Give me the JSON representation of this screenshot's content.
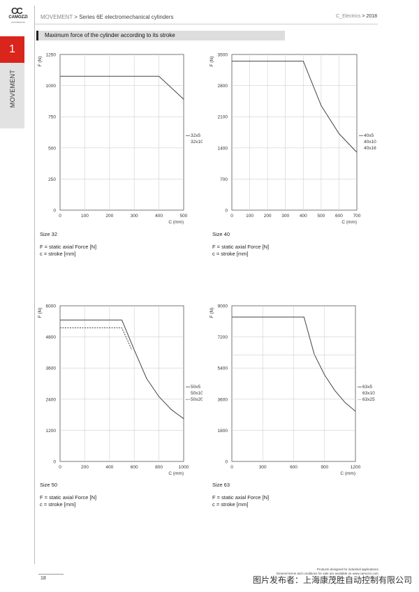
{
  "logo": {
    "mark": "CC",
    "brand": "CAMOZZI",
    "sub": "AUTOMATION"
  },
  "header": {
    "breadcrumb_section": "MOVEMENT",
    "breadcrumb_sep": " > ",
    "breadcrumb_page": "Series 6E electromechanical cylinders",
    "right_label": "C_Electrics",
    "right_sep": " > ",
    "right_year": "2018"
  },
  "sidebar": {
    "number": "1",
    "label": "MOVEMENT"
  },
  "section_title": "Maximum force of the cylinder according to its stroke",
  "captions": {
    "line1": "F = static axial Force [N]",
    "line2": "c = stroke [mm]"
  },
  "footer": {
    "line1": "Products designed for industrial applications.",
    "line2": "General terms and conditions for sale are available on www.camozzi.com.",
    "page": "18",
    "watermark": "图片发布者：上海康茂胜自动控制有限公司"
  },
  "chart_data": [
    {
      "type": "line",
      "size_label": "Size 32",
      "ylabel": "F (N)",
      "xlabel": "C (mm)",
      "xlim": [
        0,
        500
      ],
      "ylim": [
        0,
        1250
      ],
      "xticks": [
        0,
        100,
        200,
        300,
        400,
        500
      ],
      "yticks": [
        0,
        250,
        500,
        750,
        1000,
        1250
      ],
      "legend": [
        "32x5",
        "32x10"
      ],
      "series": [
        {
          "name": "32x5 / 32x10",
          "dash": "",
          "points": [
            [
              0,
              1075
            ],
            [
              400,
              1075
            ],
            [
              500,
              890
            ]
          ]
        }
      ]
    },
    {
      "type": "line",
      "size_label": "Size 40",
      "ylabel": "F (N)",
      "xlabel": "C (mm)",
      "xlim": [
        0,
        700
      ],
      "ylim": [
        0,
        3500
      ],
      "xticks": [
        0,
        100,
        200,
        300,
        400,
        500,
        600,
        700
      ],
      "yticks": [
        0,
        700,
        1400,
        2100,
        2800,
        3500
      ],
      "legend": [
        "40x5",
        "40x10",
        "40x16"
      ],
      "series": [
        {
          "name": "40x5 / 40x10 / 40x16",
          "dash": "",
          "points": [
            [
              0,
              3350
            ],
            [
              400,
              3350
            ],
            [
              500,
              2350
            ],
            [
              600,
              1720
            ],
            [
              700,
              1300
            ]
          ]
        }
      ]
    },
    {
      "type": "line",
      "size_label": "Size 50",
      "ylabel": "F (N)",
      "xlabel": "C (mm)",
      "xlim": [
        0,
        1000
      ],
      "ylim": [
        0,
        6000
      ],
      "xticks": [
        0,
        200,
        400,
        600,
        800,
        1000
      ],
      "yticks": [
        0,
        1200,
        2400,
        3600,
        4800,
        6000
      ],
      "legend": [
        "50x5",
        "50x10",
        "50x20"
      ],
      "series": [
        {
          "name": "50x5 / 50x10",
          "dash": "",
          "points": [
            [
              0,
              5450
            ],
            [
              500,
              5450
            ],
            [
              600,
              4300
            ],
            [
              700,
              3200
            ],
            [
              800,
              2500
            ],
            [
              900,
              2000
            ],
            [
              1000,
              1650
            ]
          ]
        },
        {
          "name": "50x20",
          "dash": "2,1.5",
          "points": [
            [
              0,
              5150
            ],
            [
              500,
              5150
            ],
            [
              580,
              4300
            ]
          ]
        }
      ]
    },
    {
      "type": "line",
      "size_label": "Size 63",
      "ylabel": "F (N)",
      "xlabel": "C (mm)",
      "xlim": [
        0,
        1200
      ],
      "ylim": [
        0,
        9000
      ],
      "xticks": [
        0,
        300,
        600,
        900,
        1200
      ],
      "yticks": [
        0,
        1800,
        3600,
        5400,
        7200,
        9000
      ],
      "legend": [
        "63x5",
        "63x10",
        "63x25"
      ],
      "series": [
        {
          "name": "63x5 / 63x10",
          "dash": "",
          "points": [
            [
              0,
              8350
            ],
            [
              700,
              8350
            ],
            [
              800,
              6200
            ],
            [
              900,
              5000
            ],
            [
              1000,
              4100
            ],
            [
              1100,
              3400
            ],
            [
              1200,
              2900
            ]
          ]
        },
        {
          "name": "63x25",
          "dash": "",
          "gray": true,
          "points": [
            [
              0,
              6150
            ],
            [
              1200,
              6150
            ]
          ]
        }
      ]
    }
  ]
}
